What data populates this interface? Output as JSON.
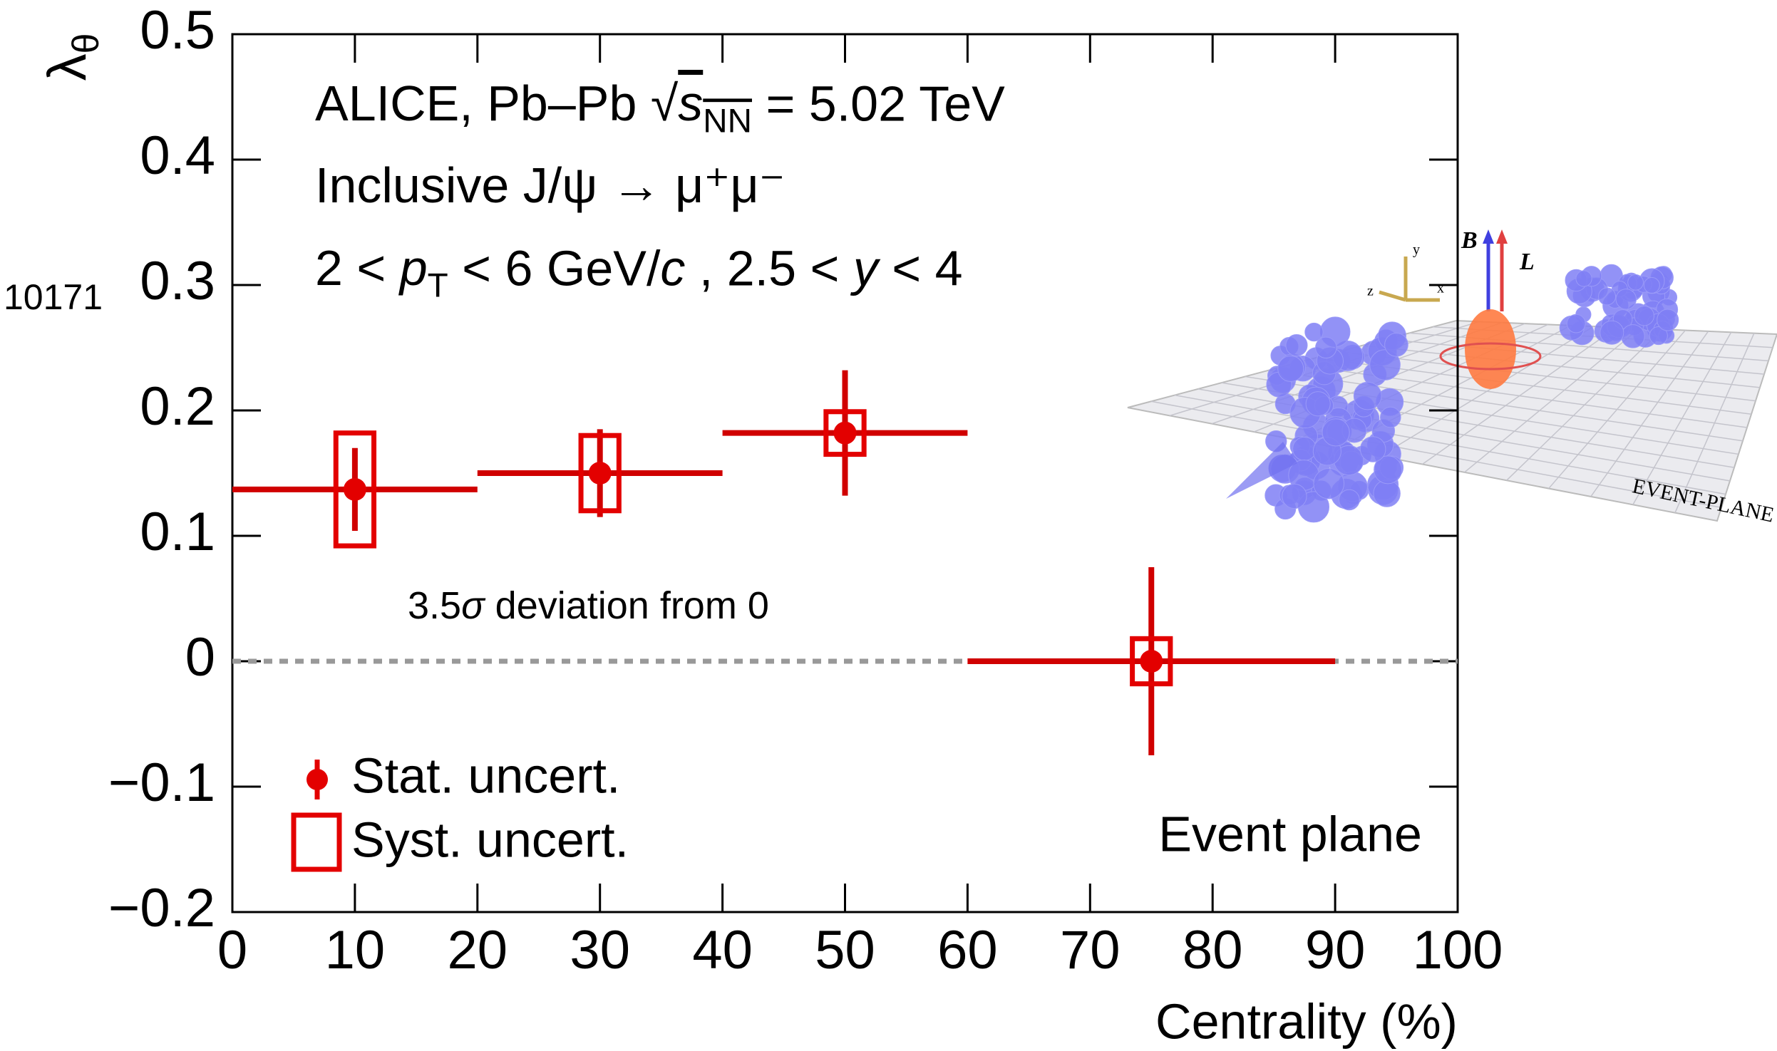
{
  "chart_data": {
    "type": "errorbar",
    "header_lines": [
      [
        {
          "text": "ALICE, Pb–Pb "
        },
        {
          "text": "√"
        },
        {
          "text": "s",
          "style": "italic-overline"
        },
        {
          "text": "NN",
          "style": "sub-overline"
        },
        {
          "text": " = 5.02 TeV"
        }
      ],
      [
        {
          "text": "Inclusive J/ψ → μ⁺μ⁻"
        }
      ],
      [
        {
          "text": "2 < "
        },
        {
          "text": "p",
          "style": "italic"
        },
        {
          "text": "T",
          "style": "sub"
        },
        {
          "text": " < 6 GeV/"
        },
        {
          "text": "c",
          "style": "italic"
        },
        {
          "text": " , 2.5 < "
        },
        {
          "text": "y",
          "style": "italic"
        },
        {
          "text": " < 4"
        }
      ]
    ],
    "side_label": "10171",
    "annotation": [
      {
        "text": "3.5"
      },
      {
        "text": "σ",
        "style": "italic"
      },
      {
        "text": " deviation from 0"
      }
    ],
    "method_label": "Event plane",
    "y_label": [
      {
        "text": "λ"
      },
      {
        "text": "θ",
        "style": "sub"
      }
    ],
    "x_label": "Centrality (%)",
    "x": [
      10,
      30,
      50,
      75
    ],
    "xlow": [
      0,
      20,
      40,
      60
    ],
    "xhigh": [
      20,
      40,
      60,
      90
    ],
    "values": [
      0.137,
      0.15,
      0.182,
      0.0
    ],
    "stat_err": [
      0.033,
      0.035,
      0.05,
      0.075
    ],
    "syst_err": [
      0.045,
      0.03,
      0.017,
      0.018
    ],
    "color": "#e30000",
    "legend": {
      "position": "lower left",
      "stat": "Stat. uncert.",
      "syst": "Syst. uncert."
    },
    "reference_line": {
      "y": 0,
      "color": "#999999"
    },
    "xlim": [
      0,
      100
    ],
    "xticks": [
      0,
      10,
      20,
      30,
      40,
      50,
      60,
      70,
      80,
      90,
      100
    ],
    "ylim": [
      -0.2,
      0.5
    ],
    "yticks": [
      {
        "value": -0.2,
        "label": "−0.2"
      },
      {
        "value": -0.1,
        "label": "−0.1"
      },
      0,
      0.1,
      0.2,
      0.3,
      0.4,
      0.5
    ],
    "inset": {
      "plane_label": "EVENT-PLANE",
      "vectors": [
        "B",
        "L"
      ],
      "axes": [
        "x",
        "y",
        "z"
      ]
    }
  }
}
